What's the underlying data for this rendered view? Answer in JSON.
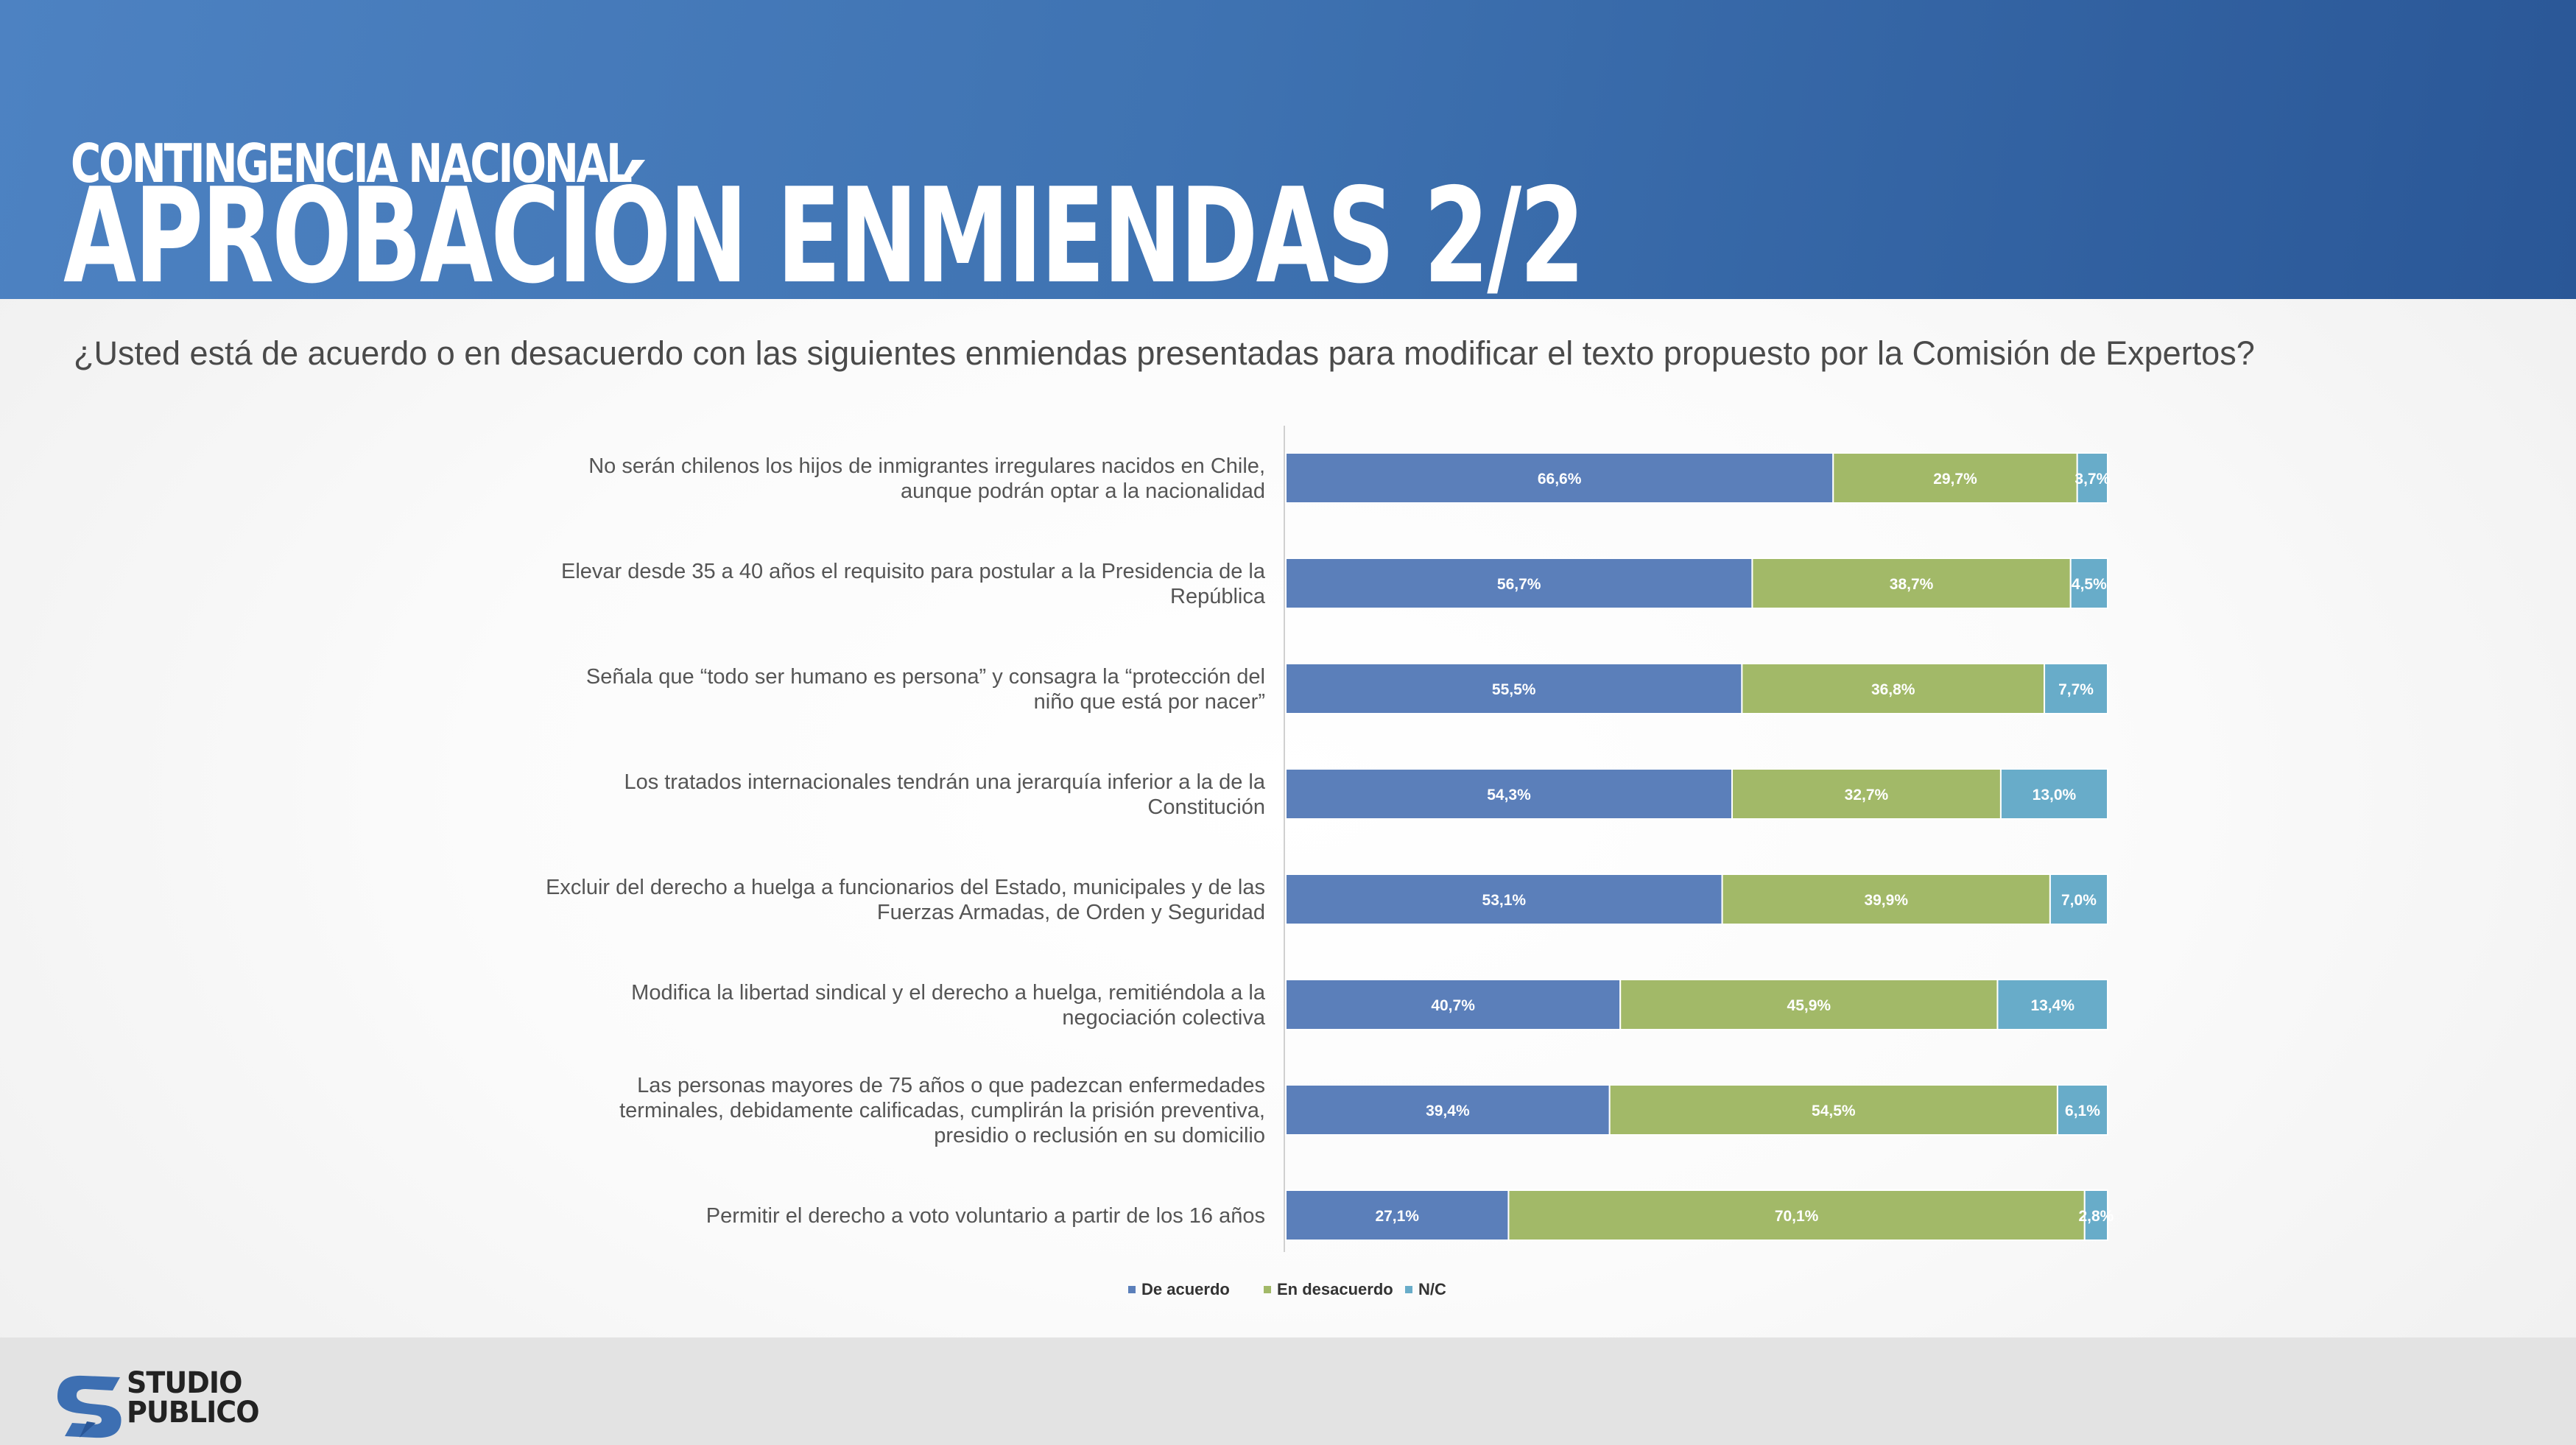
{
  "header": {
    "kicker": "CONTINGENCIA NACIONAL",
    "title": "APROBACIÓN ENMIENDAS 2/2"
  },
  "question": "¿Usted está de acuerdo o en desacuerdo con las siguientes enmiendas presentadas para modificar el texto propuesto por la Comisión de Expertos?",
  "chart_data": {
    "type": "bar",
    "orientation": "horizontal",
    "stacked": true,
    "categories": [
      "No serán chilenos los hijos de inmigrantes irregulares nacidos en Chile, aunque podrán optar a la nacionalidad",
      "Elevar desde 35 a 40 años el requisito para postular a la Presidencia de la República",
      "Señala que “todo ser humano es persona” y consagra la “protección del niño que está por nacer”",
      "Los tratados internacionales tendrán una jerarquía inferior a la de la Constitución",
      "Excluir del derecho a huelga a funcionarios del Estado, municipales y de las Fuerzas Armadas, de Orden y Seguridad",
      "Modifica la libertad sindical y el derecho a huelga, remitiéndola a la negociación colectiva",
      "Las personas mayores de 75 años o que padezcan enfermedades terminales, debidamente calificadas, cumplirán la prisión preventiva, presidio o reclusión en su domicilio",
      "Permitir el derecho a voto voluntario a partir de los 16 años"
    ],
    "category_lines": [
      [
        "No serán chilenos los hijos de inmigrantes irregulares nacidos en Chile,",
        "aunque podrán optar a la nacionalidad"
      ],
      [
        "Elevar desde 35 a 40 años el requisito para postular a la Presidencia de la",
        "República"
      ],
      [
        "Señala que “todo ser humano es persona” y consagra la “protección del",
        "niño que está por nacer”"
      ],
      [
        "Los tratados internacionales tendrán una jerarquía inferior a la de la",
        "Constitución"
      ],
      [
        "Excluir del derecho a huelga a funcionarios del Estado, municipales y de las",
        "Fuerzas Armadas, de Orden y Seguridad"
      ],
      [
        "Modifica la libertad sindical y el derecho a huelga, remitiéndola a la",
        "negociación colectiva"
      ],
      [
        "Las personas mayores de 75 años o que padezcan enfermedades",
        "terminales, debidamente calificadas, cumplirán la prisión preventiva,",
        "presidio o reclusión en su domicilio"
      ],
      [
        "Permitir el derecho a voto voluntario a partir de los 16 años"
      ]
    ],
    "series": [
      {
        "name": "De acuerdo",
        "color": "#5b7fba",
        "values": [
          66.6,
          56.7,
          55.5,
          54.3,
          53.1,
          40.7,
          39.4,
          27.1
        ],
        "labels": [
          "66,6%",
          "56,7%",
          "55,5%",
          "54,3%",
          "53,1%",
          "40,7%",
          "39,4%",
          "27,1%"
        ]
      },
      {
        "name": "En desacuerdo",
        "color": "#a2b968",
        "values": [
          29.7,
          38.7,
          36.8,
          32.7,
          39.9,
          45.9,
          54.5,
          70.1
        ],
        "labels": [
          "29,7%",
          "38,7%",
          "36,8%",
          "32,7%",
          "39,9%",
          "45,9%",
          "54,5%",
          "70,1%"
        ]
      },
      {
        "name": "N/C",
        "color": "#68acc9",
        "values": [
          3.7,
          4.5,
          7.7,
          13.0,
          7.0,
          13.4,
          6.1,
          2.8
        ],
        "labels": [
          "3,7%",
          "4,5%",
          "7,7%",
          "13,0%",
          "7,0%",
          "13,4%",
          "6,1%",
          "2,8%"
        ]
      }
    ],
    "legend": "bottom",
    "grid": false
  },
  "footer": {
    "logo_line1": "STUDIO",
    "logo_line2": "PUBLICO"
  }
}
